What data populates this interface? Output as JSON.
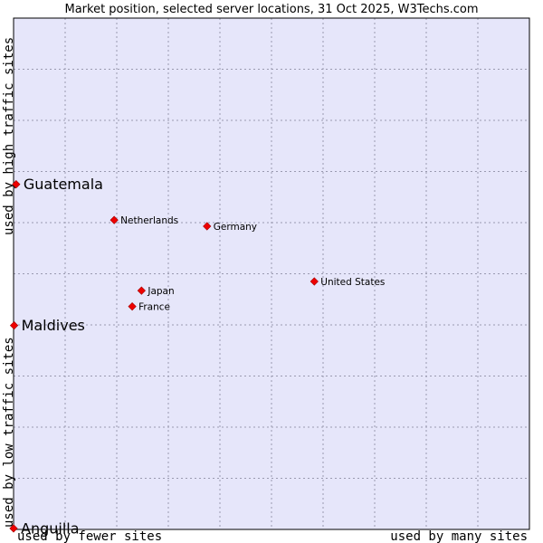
{
  "chart_data": {
    "type": "scatter",
    "title": "Market position, selected server locations, 31 Oct 2025, W3Techs.com",
    "xlabel_left": "used by fewer sites",
    "xlabel_right": "used by many sites",
    "ylabel_top": "used by high traffic sites",
    "ylabel_bottom": "used by low traffic sites",
    "grid": true,
    "xlim": [
      0,
      100
    ],
    "ylim": [
      0,
      100
    ],
    "colors": {
      "plot_bg": "#e6e6fa",
      "marker": "#ee0000",
      "border": "#000000",
      "grid": "#9a9ab0"
    },
    "points": [
      {
        "name": "Guatemala",
        "x": 0.5,
        "y": 67.5,
        "label_size": "large"
      },
      {
        "name": "Netherlands",
        "x": 19.5,
        "y": 60.5,
        "label_size": "small"
      },
      {
        "name": "Germany",
        "x": 37.5,
        "y": 59.3,
        "label_size": "small"
      },
      {
        "name": "United States",
        "x": 58.3,
        "y": 48.5,
        "label_size": "small"
      },
      {
        "name": "Japan",
        "x": 24.8,
        "y": 46.7,
        "label_size": "small"
      },
      {
        "name": "France",
        "x": 23.0,
        "y": 43.6,
        "label_size": "small"
      },
      {
        "name": "Maldives",
        "x": 0.1,
        "y": 39.9,
        "label_size": "large"
      },
      {
        "name": "Anguilla",
        "x": 0.0,
        "y": 0.2,
        "label_size": "large"
      }
    ]
  }
}
